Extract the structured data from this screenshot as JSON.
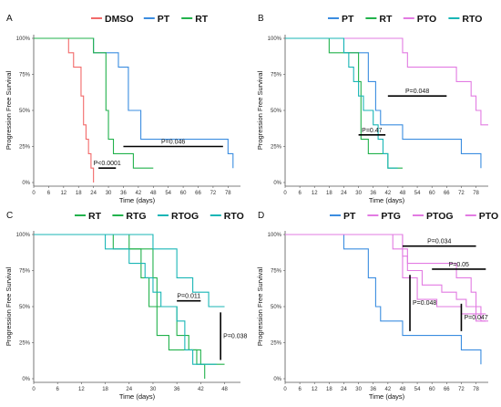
{
  "chart_data": [
    {
      "type": "line",
      "panel_label": "A",
      "xlabel": "Time (days)",
      "ylabel": "Progression Free Survival",
      "xlim": [
        0,
        83
      ],
      "ylim": [
        0,
        100
      ],
      "x_ticks": [
        0,
        6,
        12,
        18,
        24,
        30,
        36,
        42,
        48,
        54,
        60,
        66,
        72,
        78
      ],
      "y_ticks": [
        0,
        25,
        50,
        75,
        100
      ],
      "y_tick_labels": [
        "0%",
        "25%",
        "50%",
        "75%",
        "100%"
      ],
      "legend_position": "top",
      "series": [
        {
          "name": "DMSO",
          "color": "#f26a6a",
          "points": [
            [
              0,
              100
            ],
            [
              14,
              100
            ],
            [
              14,
              90
            ],
            [
              16,
              90
            ],
            [
              16,
              80
            ],
            [
              19,
              80
            ],
            [
              19,
              60
            ],
            [
              20,
              60
            ],
            [
              20,
              40
            ],
            [
              21,
              40
            ],
            [
              21,
              30
            ],
            [
              22,
              30
            ],
            [
              22,
              20
            ],
            [
              23,
              20
            ],
            [
              23,
              10
            ],
            [
              24,
              10
            ],
            [
              24,
              0
            ]
          ]
        },
        {
          "name": "PT",
          "color": "#3b8de0",
          "points": [
            [
              0,
              100
            ],
            [
              24,
              100
            ],
            [
              24,
              90
            ],
            [
              34,
              90
            ],
            [
              34,
              80
            ],
            [
              38,
              80
            ],
            [
              38,
              50
            ],
            [
              43,
              50
            ],
            [
              43,
              30
            ],
            [
              78,
              30
            ],
            [
              78,
              20
            ],
            [
              80,
              20
            ],
            [
              80,
              10
            ]
          ]
        },
        {
          "name": "RT",
          "color": "#22b24c",
          "points": [
            [
              0,
              100
            ],
            [
              24,
              100
            ],
            [
              24,
              90
            ],
            [
              29,
              90
            ],
            [
              29,
              50
            ],
            [
              30,
              50
            ],
            [
              30,
              30
            ],
            [
              32,
              30
            ],
            [
              32,
              20
            ],
            [
              40,
              20
            ],
            [
              40,
              10
            ],
            [
              48,
              10
            ]
          ]
        }
      ],
      "annotations": [
        {
          "text": "P<0.0001",
          "bar": [
            26,
            33
          ],
          "y": 10
        },
        {
          "text": "P=0.046",
          "bar": [
            36,
            76
          ],
          "y": 25
        }
      ]
    },
    {
      "type": "line",
      "panel_label": "B",
      "xlabel": "Time (days)",
      "ylabel": "Progression Free Survival",
      "xlim": [
        0,
        83
      ],
      "ylim": [
        0,
        100
      ],
      "x_ticks": [
        0,
        6,
        12,
        18,
        24,
        30,
        36,
        42,
        48,
        54,
        60,
        66,
        72,
        78
      ],
      "y_ticks": [
        0,
        25,
        50,
        75,
        100
      ],
      "y_tick_labels": [
        "0%",
        "25%",
        "50%",
        "75%",
        "100%"
      ],
      "legend_position": "top",
      "series": [
        {
          "name": "PT",
          "color": "#3b8de0",
          "points": [
            [
              0,
              100
            ],
            [
              24,
              100
            ],
            [
              24,
              90
            ],
            [
              34,
              90
            ],
            [
              34,
              70
            ],
            [
              37,
              70
            ],
            [
              37,
              50
            ],
            [
              39,
              50
            ],
            [
              39,
              40
            ],
            [
              48,
              40
            ],
            [
              48,
              30
            ],
            [
              72,
              30
            ],
            [
              72,
              20
            ],
            [
              80,
              20
            ],
            [
              80,
              10
            ]
          ]
        },
        {
          "name": "RT",
          "color": "#22b24c",
          "points": [
            [
              0,
              100
            ],
            [
              18,
              100
            ],
            [
              18,
              90
            ],
            [
              30,
              90
            ],
            [
              30,
              70
            ],
            [
              31,
              70
            ],
            [
              31,
              30
            ],
            [
              34,
              30
            ],
            [
              34,
              20
            ],
            [
              42,
              20
            ],
            [
              42,
              10
            ],
            [
              48,
              10
            ]
          ]
        },
        {
          "name": "PTO",
          "color": "#e27be2",
          "points": [
            [
              0,
              100
            ],
            [
              48,
              100
            ],
            [
              48,
              90
            ],
            [
              50,
              90
            ],
            [
              50,
              80
            ],
            [
              70,
              80
            ],
            [
              70,
              70
            ],
            [
              76,
              70
            ],
            [
              76,
              60
            ],
            [
              78,
              60
            ],
            [
              78,
              50
            ],
            [
              80,
              50
            ],
            [
              80,
              40
            ],
            [
              83,
              40
            ]
          ]
        },
        {
          "name": "RTO",
          "color": "#19b6b6",
          "points": [
            [
              0,
              100
            ],
            [
              24,
              100
            ],
            [
              24,
              90
            ],
            [
              26,
              90
            ],
            [
              26,
              80
            ],
            [
              28,
              80
            ],
            [
              28,
              70
            ],
            [
              30,
              70
            ],
            [
              30,
              60
            ],
            [
              32,
              60
            ],
            [
              32,
              50
            ],
            [
              36,
              50
            ],
            [
              36,
              40
            ],
            [
              38,
              40
            ],
            [
              38,
              30
            ],
            [
              40,
              30
            ],
            [
              40,
              20
            ],
            [
              42,
              20
            ],
            [
              42,
              10
            ],
            [
              46,
              10
            ]
          ]
        }
      ],
      "annotations": [
        {
          "text": "P=0.47",
          "bar": [
            30,
            41
          ],
          "y": 33
        },
        {
          "text": "P=0.048",
          "bar": [
            42,
            66
          ],
          "y": 60
        }
      ]
    },
    {
      "type": "line",
      "panel_label": "C",
      "xlabel": "Time (days)",
      "ylabel": "Progression Free Survival",
      "xlim": [
        0,
        52
      ],
      "ylim": [
        0,
        100
      ],
      "x_ticks": [
        0,
        6,
        12,
        18,
        24,
        30,
        36,
        42,
        48
      ],
      "y_ticks": [
        0,
        25,
        50,
        75,
        100
      ],
      "y_tick_labels": [
        "0%",
        "25%",
        "50%",
        "75%",
        "100%"
      ],
      "legend_position": "top",
      "series": [
        {
          "name": "RT",
          "color": "#22b24c",
          "points": [
            [
              0,
              100
            ],
            [
              24,
              100
            ],
            [
              24,
              90
            ],
            [
              30,
              90
            ],
            [
              30,
              70
            ],
            [
              31,
              70
            ],
            [
              31,
              30
            ],
            [
              34,
              30
            ],
            [
              34,
              20
            ],
            [
              42,
              20
            ],
            [
              42,
              10
            ],
            [
              48,
              10
            ]
          ]
        },
        {
          "name": "RTG",
          "color": "#22b24c",
          "points": [
            [
              0,
              100
            ],
            [
              20,
              100
            ],
            [
              20,
              90
            ],
            [
              27,
              90
            ],
            [
              27,
              70
            ],
            [
              29,
              70
            ],
            [
              29,
              50
            ],
            [
              36,
              50
            ],
            [
              36,
              30
            ],
            [
              39,
              30
            ],
            [
              39,
              20
            ],
            [
              41,
              20
            ],
            [
              41,
              10
            ],
            [
              43,
              10
            ],
            [
              43,
              0
            ]
          ]
        },
        {
          "name": "RTOG",
          "color": "#19b6b6",
          "points": [
            [
              0,
              100
            ],
            [
              30,
              100
            ],
            [
              30,
              90
            ],
            [
              36,
              90
            ],
            [
              36,
              70
            ],
            [
              40,
              70
            ],
            [
              40,
              60
            ],
            [
              44,
              60
            ],
            [
              44,
              50
            ],
            [
              48,
              50
            ]
          ]
        },
        {
          "name": "RTO",
          "color": "#19b6b6",
          "points": [
            [
              0,
              100
            ],
            [
              18,
              100
            ],
            [
              18,
              90
            ],
            [
              24,
              90
            ],
            [
              24,
              80
            ],
            [
              28,
              80
            ],
            [
              28,
              70
            ],
            [
              30,
              70
            ],
            [
              30,
              60
            ],
            [
              32,
              60
            ],
            [
              32,
              50
            ],
            [
              36,
              50
            ],
            [
              36,
              40
            ],
            [
              38,
              40
            ],
            [
              38,
              20
            ],
            [
              40,
              20
            ],
            [
              40,
              10
            ],
            [
              46,
              10
            ]
          ]
        }
      ],
      "annotations": [
        {
          "text": "P=0.011",
          "bar": [
            36,
            42
          ],
          "y": 54
        },
        {
          "text": "P=0.038",
          "vbar": [
            47,
            13,
            46
          ]
        }
      ]
    },
    {
      "type": "line",
      "panel_label": "D",
      "xlabel": "Time (days)",
      "ylabel": "Progression Free Survival",
      "xlim": [
        0,
        83
      ],
      "ylim": [
        0,
        100
      ],
      "x_ticks": [
        0,
        6,
        12,
        18,
        24,
        30,
        36,
        42,
        48,
        54,
        60,
        66,
        72,
        78
      ],
      "y_ticks": [
        0,
        25,
        50,
        75,
        100
      ],
      "y_tick_labels": [
        "0%",
        "25%",
        "50%",
        "75%",
        "100%"
      ],
      "legend_position": "top",
      "series": [
        {
          "name": "PT",
          "color": "#3b8de0",
          "points": [
            [
              0,
              100
            ],
            [
              24,
              100
            ],
            [
              24,
              90
            ],
            [
              34,
              90
            ],
            [
              34,
              70
            ],
            [
              37,
              70
            ],
            [
              37,
              50
            ],
            [
              39,
              50
            ],
            [
              39,
              40
            ],
            [
              48,
              40
            ],
            [
              48,
              30
            ],
            [
              72,
              30
            ],
            [
              72,
              20
            ],
            [
              80,
              20
            ],
            [
              80,
              10
            ]
          ]
        },
        {
          "name": "PTG",
          "color": "#e27be2",
          "points": [
            [
              0,
              100
            ],
            [
              44,
              100
            ],
            [
              44,
              90
            ],
            [
              48,
              90
            ],
            [
              48,
              70
            ],
            [
              54,
              70
            ],
            [
              54,
              55
            ],
            [
              62,
              55
            ],
            [
              62,
              50
            ],
            [
              72,
              50
            ],
            [
              72,
              45
            ],
            [
              78,
              45
            ],
            [
              78,
              40
            ],
            [
              82,
              40
            ]
          ]
        },
        {
          "name": "PTOG",
          "color": "#e27be2",
          "points": [
            [
              0,
              100
            ],
            [
              48,
              100
            ],
            [
              48,
              85
            ],
            [
              50,
              85
            ],
            [
              50,
              75
            ],
            [
              56,
              75
            ],
            [
              56,
              65
            ],
            [
              64,
              65
            ],
            [
              64,
              60
            ],
            [
              70,
              60
            ],
            [
              70,
              55
            ],
            [
              74,
              55
            ],
            [
              74,
              50
            ],
            [
              78,
              50
            ],
            [
              78,
              45
            ],
            [
              82,
              45
            ]
          ]
        },
        {
          "name": "PTO",
          "color": "#e27be2",
          "points": [
            [
              0,
              100
            ],
            [
              48,
              100
            ],
            [
              48,
              90
            ],
            [
              50,
              90
            ],
            [
              50,
              80
            ],
            [
              70,
              80
            ],
            [
              70,
              70
            ],
            [
              76,
              70
            ],
            [
              76,
              60
            ],
            [
              78,
              60
            ],
            [
              78,
              50
            ],
            [
              80,
              50
            ],
            [
              80,
              40
            ],
            [
              83,
              40
            ]
          ]
        }
      ],
      "annotations": [
        {
          "text": "P=0.034",
          "bar": [
            48,
            78
          ],
          "y": 92
        },
        {
          "text": "P=0.05",
          "bar": [
            60,
            82
          ],
          "y": 76
        },
        {
          "text": "P=0.048",
          "vbar": [
            51,
            33,
            72
          ]
        },
        {
          "text": "P=0.047",
          "vbar": [
            72,
            33,
            52
          ]
        }
      ]
    }
  ]
}
